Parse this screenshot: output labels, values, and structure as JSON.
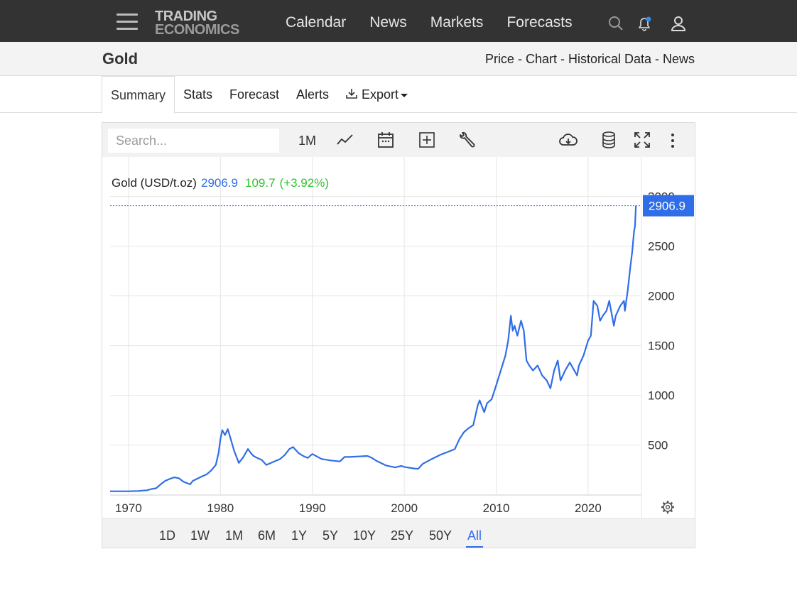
{
  "nav": {
    "logo_line1": "TRADING",
    "logo_line2": "ECONOMICS",
    "links": [
      "Calendar",
      "News",
      "Markets",
      "Forecasts"
    ],
    "icons": [
      "menu-icon",
      "search-icon",
      "bell-icon",
      "user-icon"
    ]
  },
  "header": {
    "title": "Gold",
    "links_text": "Price - Chart - Historical Data - News"
  },
  "tabs": [
    "Summary",
    "Stats",
    "Forecast",
    "Alerts",
    "Export"
  ],
  "toolbar": {
    "search_placeholder": "Search...",
    "interval": "1M",
    "icons": [
      "line-chart-icon",
      "calendar-icon",
      "add-box-icon",
      "wrench-icon",
      "cloud-download-icon",
      "database-icon",
      "fullscreen-icon",
      "more-vertical-icon"
    ]
  },
  "quote": {
    "label": "Gold (USD/t.oz)",
    "price": "2906.9",
    "change": "109.7",
    "change_pct": "(+3.92%)"
  },
  "colors": {
    "series": "#2f6ee8",
    "up": "#2dc52d",
    "nav_bg": "#333333"
  },
  "ranges": [
    "1D",
    "1W",
    "1M",
    "6M",
    "1Y",
    "5Y",
    "10Y",
    "25Y",
    "50Y",
    "All"
  ],
  "active_range": "All",
  "chart_data": {
    "type": "line",
    "title": "",
    "xlabel": "",
    "ylabel": "",
    "x_ticks": [
      1970,
      1980,
      1990,
      2000,
      2010,
      2020
    ],
    "y_ticks": [
      500,
      1000,
      1500,
      2000,
      2500,
      3000
    ],
    "last_value_label": "2906.9",
    "xlim": [
      1968,
      2025.8
    ],
    "ylim": [
      -3,
      3040
    ],
    "grid": true,
    "y_axis_side": "right",
    "series": [
      {
        "x": [
          1968.0,
          1970.0,
          1971.0,
          1972.0,
          1972.5,
          1973.0,
          1973.5,
          1974.0,
          1974.5,
          1975.0,
          1975.5,
          1976.0,
          1976.7,
          1977.0,
          1978.0,
          1978.5,
          1979.0,
          1979.5,
          1979.8,
          1980.0,
          1980.2,
          1980.5,
          1980.8,
          1981.0,
          1981.5,
          1982.0,
          1982.5,
          1983.0,
          1983.3,
          1983.6,
          1984.0,
          1984.5,
          1985.0,
          1985.5,
          1986.0,
          1986.5,
          1987.0,
          1987.5,
          1987.9,
          1988.5,
          1989.0,
          1989.5,
          1990.0,
          1991.0,
          1992.0,
          1993.0,
          1993.5,
          1994.0,
          1995.0,
          1996.0,
          1996.5,
          1997.0,
          1998.0,
          1999.0,
          1999.7,
          2000.0,
          2001.0,
          2001.5,
          2002.0,
          2003.0,
          2004.0,
          2005.0,
          2005.5,
          2006.0,
          2006.5,
          2007.0,
          2007.5,
          2008.0,
          2008.2,
          2008.7,
          2009.0,
          2009.5,
          2010.0,
          2010.5,
          2011.0,
          2011.3,
          2011.6,
          2011.8,
          2012.0,
          2012.3,
          2012.7,
          2013.0,
          2013.3,
          2013.6,
          2014.0,
          2014.5,
          2015.0,
          2015.5,
          2015.9,
          2016.3,
          2016.7,
          2017.0,
          2017.5,
          2018.0,
          2018.5,
          2018.8,
          2019.0,
          2019.5,
          2020.0,
          2020.3,
          2020.6,
          2021.0,
          2021.3,
          2021.6,
          2022.0,
          2022.3,
          2022.8,
          2023.0,
          2023.5,
          2023.9,
          2024.0,
          2024.3,
          2024.6,
          2024.8,
          2025.0,
          2025.1,
          2025.2
        ],
        "y": [
          35,
          35,
          38,
          45,
          58,
          65,
          105,
          140,
          160,
          175,
          165,
          130,
          105,
          140,
          185,
          205,
          245,
          300,
          420,
          560,
          650,
          600,
          660,
          600,
          440,
          320,
          380,
          460,
          420,
          390,
          370,
          350,
          300,
          320,
          340,
          360,
          400,
          460,
          480,
          420,
          390,
          370,
          410,
          360,
          345,
          335,
          380,
          380,
          385,
          390,
          370,
          340,
          295,
          275,
          290,
          280,
          265,
          260,
          310,
          360,
          405,
          440,
          460,
          560,
          630,
          670,
          700,
          900,
          950,
          830,
          920,
          960,
          1100,
          1250,
          1400,
          1550,
          1800,
          1650,
          1700,
          1600,
          1750,
          1650,
          1350,
          1300,
          1250,
          1300,
          1200,
          1150,
          1070,
          1250,
          1350,
          1150,
          1250,
          1330,
          1250,
          1200,
          1300,
          1400,
          1550,
          1600,
          1950,
          1900,
          1750,
          1800,
          1850,
          1950,
          1700,
          1800,
          1900,
          1950,
          1850,
          2050,
          2300,
          2450,
          2650,
          2700,
          2906.9
        ]
      }
    ]
  }
}
